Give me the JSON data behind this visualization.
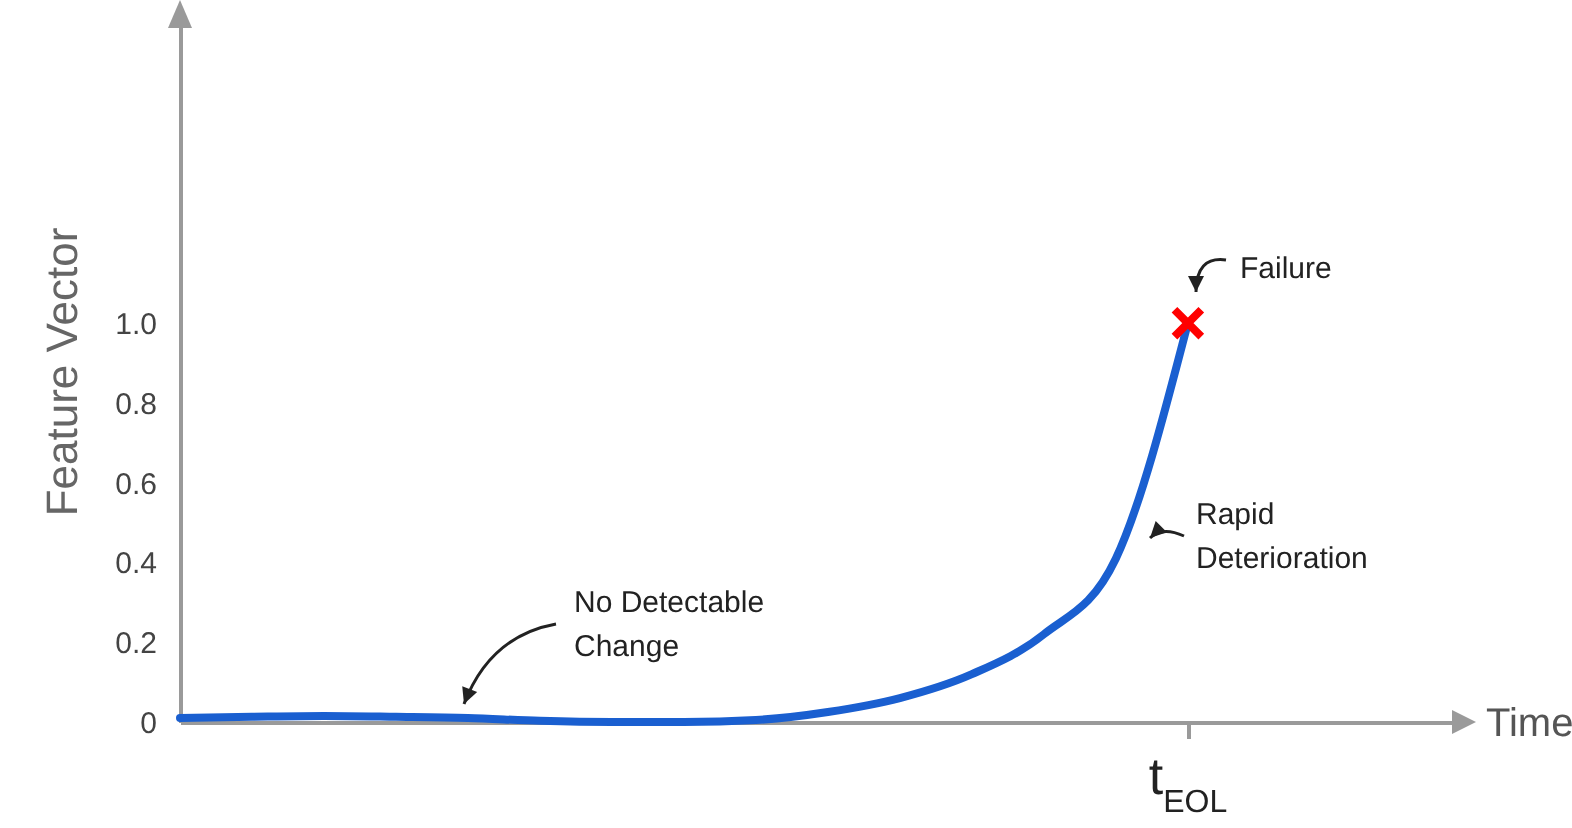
{
  "chart_data": {
    "type": "line",
    "ylabel": "Feature Vector",
    "categories": [
      null,
      null,
      null,
      null,
      null,
      null,
      null,
      null,
      null,
      null,
      null,
      null,
      null,
      null,
      null
    ],
    "series": [
      {
        "color": "#1a5fd0",
        "values": [
          0.01,
          0.013,
          0.015,
          0.013,
          0.01,
          0.003,
          0,
          0,
          0.005,
          0.025,
          0.06,
          0.12,
          0.22,
          0.41,
          1.0
        ]
      },
      {
        "type": "scatter",
        "color": "#ff0000",
        "marker": "cross",
        "values": [
          null,
          null,
          null,
          null,
          null,
          null,
          null,
          null,
          null,
          null,
          null,
          null,
          null,
          null,
          1.0
        ]
      }
    ],
    "ylim": [
      0,
      1.76
    ],
    "yticks": [
      0,
      0.2,
      0.4,
      0.6,
      0.8,
      {
        "value": 1,
        "label": "1.0"
      }
    ],
    "annotations": [
      "No Detectable\nChange",
      "Rapid\nDeterioration",
      "Failure",
      "t$_{EOL}$",
      "Time"
    ]
  }
}
